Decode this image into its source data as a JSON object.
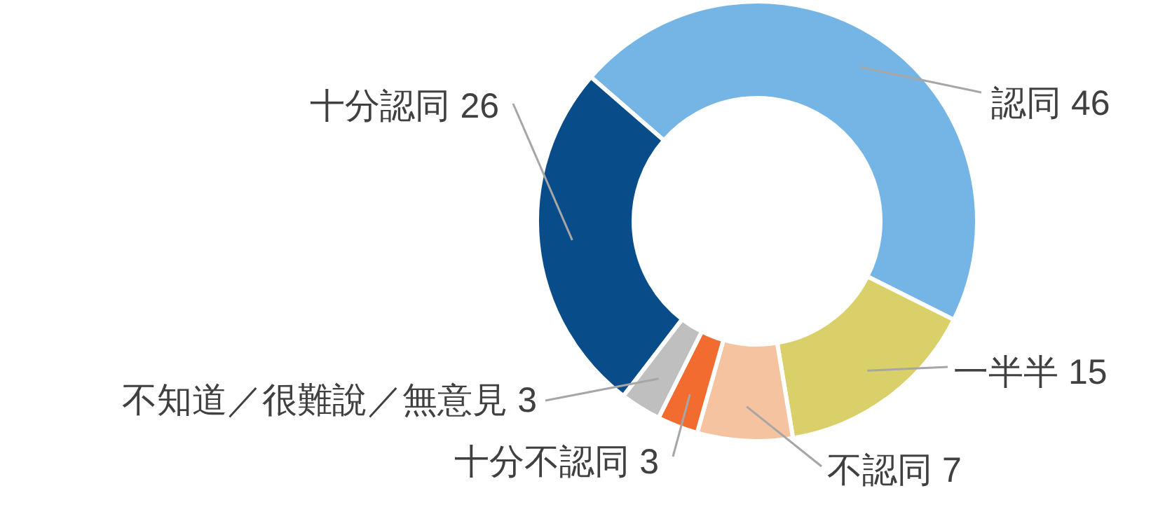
{
  "chart_data": {
    "type": "donut",
    "categories": [
      "認同",
      "一半半",
      "不認同",
      "十分不認同",
      "不知道／很難說／無意見",
      "十分認同"
    ],
    "values": [
      46,
      15,
      7,
      3,
      3,
      26
    ],
    "colors": [
      "#74b5e6",
      "#d9d06a",
      "#f5c39f",
      "#f26b2f",
      "#bfbfbf",
      "#084d8a"
    ],
    "data_labels": true
  }
}
